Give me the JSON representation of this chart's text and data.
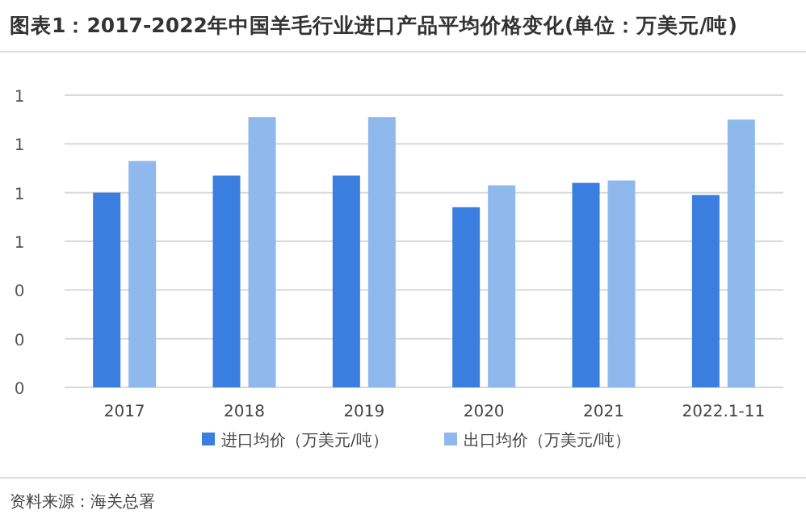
{
  "chart_data": {
    "type": "bar",
    "title": "图表1：2017-2022年中国羊毛行业进口产品平均价格变化(单位：万美元/吨)",
    "categories": [
      "2017",
      "2018",
      "2019",
      "2020",
      "2021",
      "2022.1-11"
    ],
    "series": [
      {
        "name": "进口均价（万美元/吨）",
        "color": "#3a7fe0",
        "values": [
          0.8,
          0.87,
          0.87,
          0.74,
          0.84,
          0.79
        ]
      },
      {
        "name": "出口均价（万美元/吨）",
        "color": "#8fb8ec",
        "values": [
          0.93,
          1.11,
          1.11,
          0.83,
          0.85,
          1.1
        ]
      }
    ],
    "ylim": [
      0,
      1.2
    ],
    "yticks": [
      0,
      {
        "value": 0.2,
        "label": "0"
      },
      {
        "value": 0.4,
        "label": "0"
      },
      {
        "value": 0.6,
        "label": "1"
      },
      {
        "value": 0.8,
        "label": "1"
      },
      {
        "value": 1.0,
        "label": "1"
      },
      {
        "value": 1.2,
        "label": "1"
      }
    ],
    "grid": "y",
    "legend": "bottom",
    "annotations": [
      "资料来源：海关总署"
    ]
  }
}
